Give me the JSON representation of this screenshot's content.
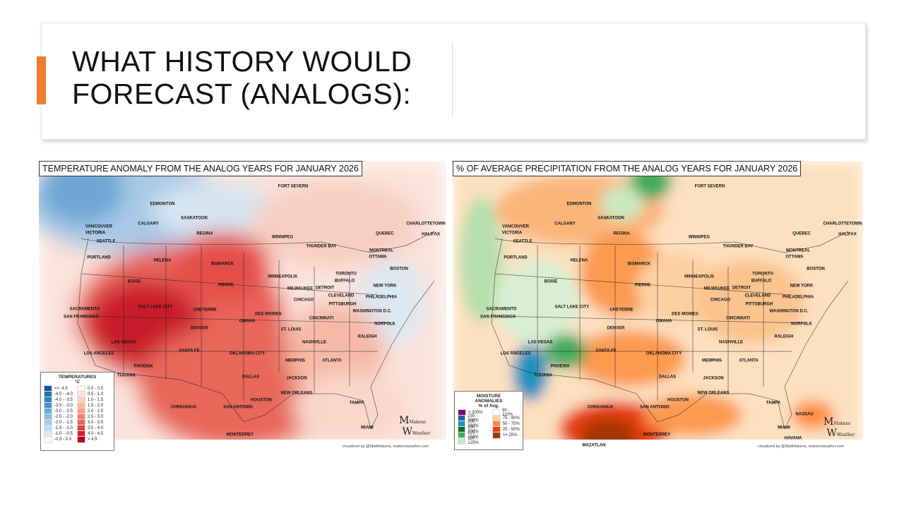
{
  "slide": {
    "title_line1": "WHAT HISTORY WOULD",
    "title_line2": "FORECAST (ANALOGS):",
    "accent_color": "#ed7d31"
  },
  "temp_map": {
    "title": "TEMPERATURE ANOMALY FROM THE ANALOG YEARS FOR JANUARY 2026",
    "legend": {
      "title1": "TEMPERATURES",
      "title2": "°C",
      "cold": [
        {
          "label": "<= -4.5",
          "color": "#08519c"
        },
        {
          "label": "-4.5 - -4.0",
          "color": "#2171b5"
        },
        {
          "label": "-4.0 - -3.5",
          "color": "#3182bd"
        },
        {
          "label": "-3.5 - -3.0",
          "color": "#4292c6"
        },
        {
          "label": "-3.0 - -2.5",
          "color": "#6baed6"
        },
        {
          "label": "-2.5 - -2.0",
          "color": "#8dbbe0"
        },
        {
          "label": "-2.0 - -1.5",
          "color": "#a6cbe8"
        },
        {
          "label": "-1.5 - -1.0",
          "color": "#c0daee"
        },
        {
          "label": "-1.0 - -0.5",
          "color": "#dae8f5"
        },
        {
          "label": "-0.5 - 0.0",
          "color": "#f4f8fc"
        }
      ],
      "warm": [
        {
          "label": "0.0 - 0.5",
          "color": "#fff7f3"
        },
        {
          "label": "0.5 - 1.0",
          "color": "#fde2d8"
        },
        {
          "label": "1.0 - 1.5",
          "color": "#fcd0bf"
        },
        {
          "label": "1.5 - 2.0",
          "color": "#fbb9a0"
        },
        {
          "label": "2.0 - 2.5",
          "color": "#f9a083"
        },
        {
          "label": "2.5 - 3.0",
          "color": "#f4836a"
        },
        {
          "label": "3.0 - 3.5",
          "color": "#ec6454"
        },
        {
          "label": "3.5 - 4.0",
          "color": "#e04040"
        },
        {
          "label": "4.0 - 4.5",
          "color": "#cd1f2e"
        },
        {
          "label": "> 4.5",
          "color": "#b0001e"
        }
      ]
    },
    "credit": "visualized by @MattMakens, makensweather.com"
  },
  "precip_map": {
    "title": "% OF AVERAGE PRECIPITATION FROM THE ANALOG YEARS FOR JANUARY 2026",
    "legend": {
      "title1": "MOISTURE",
      "title2": "ANOMALIES",
      "title3": "% of Avg.",
      "wet": [
        {
          "label": "> 300%",
          "color": "#7a0177"
        },
        {
          "label": "250 - 300%",
          "color": "#225ea8"
        },
        {
          "label": "200 - 250%",
          "color": "#1d91c0"
        },
        {
          "label": "150 - 200%",
          "color": "#006d2c"
        },
        {
          "label": "125 - 150%",
          "color": "#41ab5d"
        },
        {
          "label": "110 - 125%",
          "color": "#c7e9c0"
        }
      ],
      "dry": [
        {
          "label": "90 - 110%",
          "color": "#ffffff"
        },
        {
          "label": "75 - 90%",
          "color": "#fdd0a2"
        },
        {
          "label": "50 - 75%",
          "color": "#fd8d3c"
        },
        {
          "label": "25 - 50%",
          "color": "#e6400f"
        },
        {
          "label": "<= 25%",
          "color": "#a63603"
        }
      ]
    },
    "credit": "visualized by @MattMakens, makensweather.com"
  },
  "logo": {
    "line1": "Makens",
    "line2": "Weather"
  },
  "cities": [
    "EDMONTON",
    "CALGARY",
    "SASKATOON",
    "REGINA",
    "VANCOUVER",
    "VICTORIA",
    "SEATTLE",
    "PORTLAND",
    "WINNIPEG",
    "FORT SEVERN",
    "THUNDER BAY",
    "HELENA",
    "BISMARCK",
    "MINNEAPOLIS",
    "BOISE",
    "PIERRE",
    "QUEBEC",
    "CHARLOTTETOWN",
    "HALIFAX",
    "MONTREAL",
    "OTTAWA",
    "TORONTO",
    "BUFFALO",
    "BOSTON",
    "DETROIT",
    "MILWAUKEE",
    "CHICAGO",
    "CLEVELAND",
    "PITTSBURGH",
    "NEW YORK",
    "PHILADELPHIA",
    "WASHINGTON D.C.",
    "SACRAMENTO",
    "SAN FRANCISCO",
    "SALT LAKE CITY",
    "CHEYENNE",
    "DES MOINES",
    "OMAHA",
    "DENVER",
    "CINCINNATI",
    "ST. LOUIS",
    "NORFOLK",
    "LAS VEGAS",
    "RALEIGH",
    "NASHVILLE",
    "SANTA FE",
    "LOS ANGELES",
    "OKLAHOMA CITY",
    "MEMPHIS",
    "ATLANTA",
    "PHOENIX",
    "DALLAS",
    "JACKSON",
    "HOUSTON",
    "NEW ORLEANS",
    "SAN ANTONIO",
    "TIJUANA",
    "CHIHUAHUA",
    "TAMPA",
    "MIAMI",
    "MONTERREY"
  ],
  "precip_extra_cities": [
    "MAZATLAN",
    "HAVANA",
    "NASSAU"
  ]
}
